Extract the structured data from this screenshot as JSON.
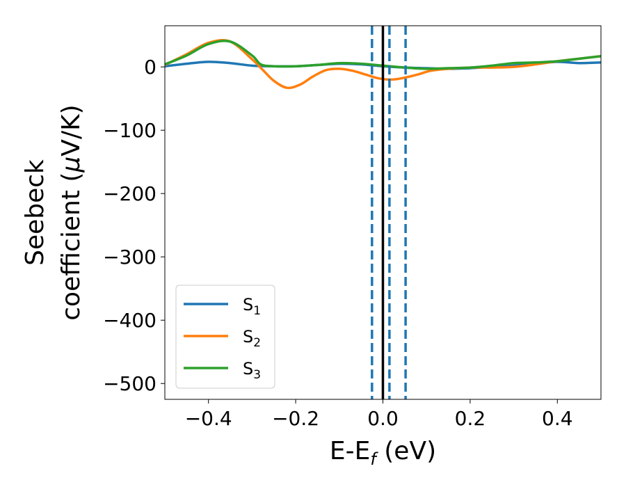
{
  "chart_data": {
    "type": "line",
    "xlabel": {
      "base": "E-E",
      "sub": "f",
      "tail": " (eV)"
    },
    "ylabel": {
      "line1": "Seebeck",
      "line2_pre": "coefficient  (",
      "line2_mu": "μ",
      "line2_post": "V/K)"
    },
    "xlim": [
      -0.5,
      0.5
    ],
    "ylim": [
      -525,
      65
    ],
    "xticks": [
      -0.4,
      -0.2,
      0.0,
      0.2,
      0.4
    ],
    "xtick_labels": [
      "−0.4",
      "−0.2",
      "0.0",
      "0.2",
      "0.4"
    ],
    "yticks": [
      0,
      -100,
      -200,
      -300,
      -400,
      -500
    ],
    "ytick_labels": [
      "0",
      "−100",
      "−200",
      "−300",
      "−400",
      "−500"
    ],
    "grid": false,
    "legend_position": "lower-left",
    "vlines": [
      {
        "x": 0.0,
        "style": "solid",
        "color": "#000000"
      },
      {
        "x": -0.025,
        "style": "dashed",
        "color": "#1f77b4"
      },
      {
        "x": 0.015,
        "style": "dashed",
        "color": "#1f77b4"
      },
      {
        "x": 0.052,
        "style": "dashed",
        "color": "#1f77b4"
      }
    ],
    "series": [
      {
        "name": "S",
        "sub": "1",
        "color": "#1f77b4",
        "x": [
          -0.5,
          -0.45,
          -0.4,
          -0.35,
          -0.3,
          -0.25,
          -0.2,
          -0.15,
          -0.1,
          -0.05,
          0.0,
          0.05,
          0.1,
          0.15,
          0.2,
          0.25,
          0.3,
          0.35,
          0.4,
          0.45,
          0.5
        ],
        "y": [
          1,
          5,
          8,
          6,
          2,
          1,
          1,
          3,
          5,
          4,
          1,
          -1,
          -2,
          -3,
          -2,
          0,
          2,
          5,
          8,
          6,
          7
        ]
      },
      {
        "name": "S",
        "sub": "2",
        "color": "#ff7f0e",
        "x": [
          -0.5,
          -0.45,
          -0.4,
          -0.35,
          -0.3,
          -0.275,
          -0.25,
          -0.22,
          -0.19,
          -0.16,
          -0.13,
          -0.1,
          -0.07,
          -0.04,
          -0.01,
          0.02,
          0.05,
          0.08,
          0.11,
          0.15,
          0.2,
          0.25,
          0.3,
          0.35,
          0.4,
          0.45,
          0.5
        ],
        "y": [
          3,
          20,
          38,
          40,
          12,
          -5,
          -22,
          -33,
          -28,
          -15,
          -5,
          -3,
          -6,
          -12,
          -18,
          -20,
          -17,
          -12,
          -6,
          -3,
          -1,
          -1,
          0,
          4,
          9,
          13,
          17
        ]
      },
      {
        "name": "S",
        "sub": "3",
        "color": "#2ca02c",
        "x": [
          -0.5,
          -0.45,
          -0.4,
          -0.35,
          -0.3,
          -0.28,
          -0.25,
          -0.2,
          -0.15,
          -0.1,
          -0.05,
          0.0,
          0.05,
          0.1,
          0.15,
          0.2,
          0.25,
          0.3,
          0.35,
          0.4,
          0.45,
          0.5
        ],
        "y": [
          4,
          18,
          36,
          40,
          18,
          4,
          1,
          1,
          3,
          6,
          5,
          2,
          -1,
          -3,
          -2,
          -1,
          2,
          6,
          7,
          9,
          13,
          17
        ]
      }
    ]
  }
}
